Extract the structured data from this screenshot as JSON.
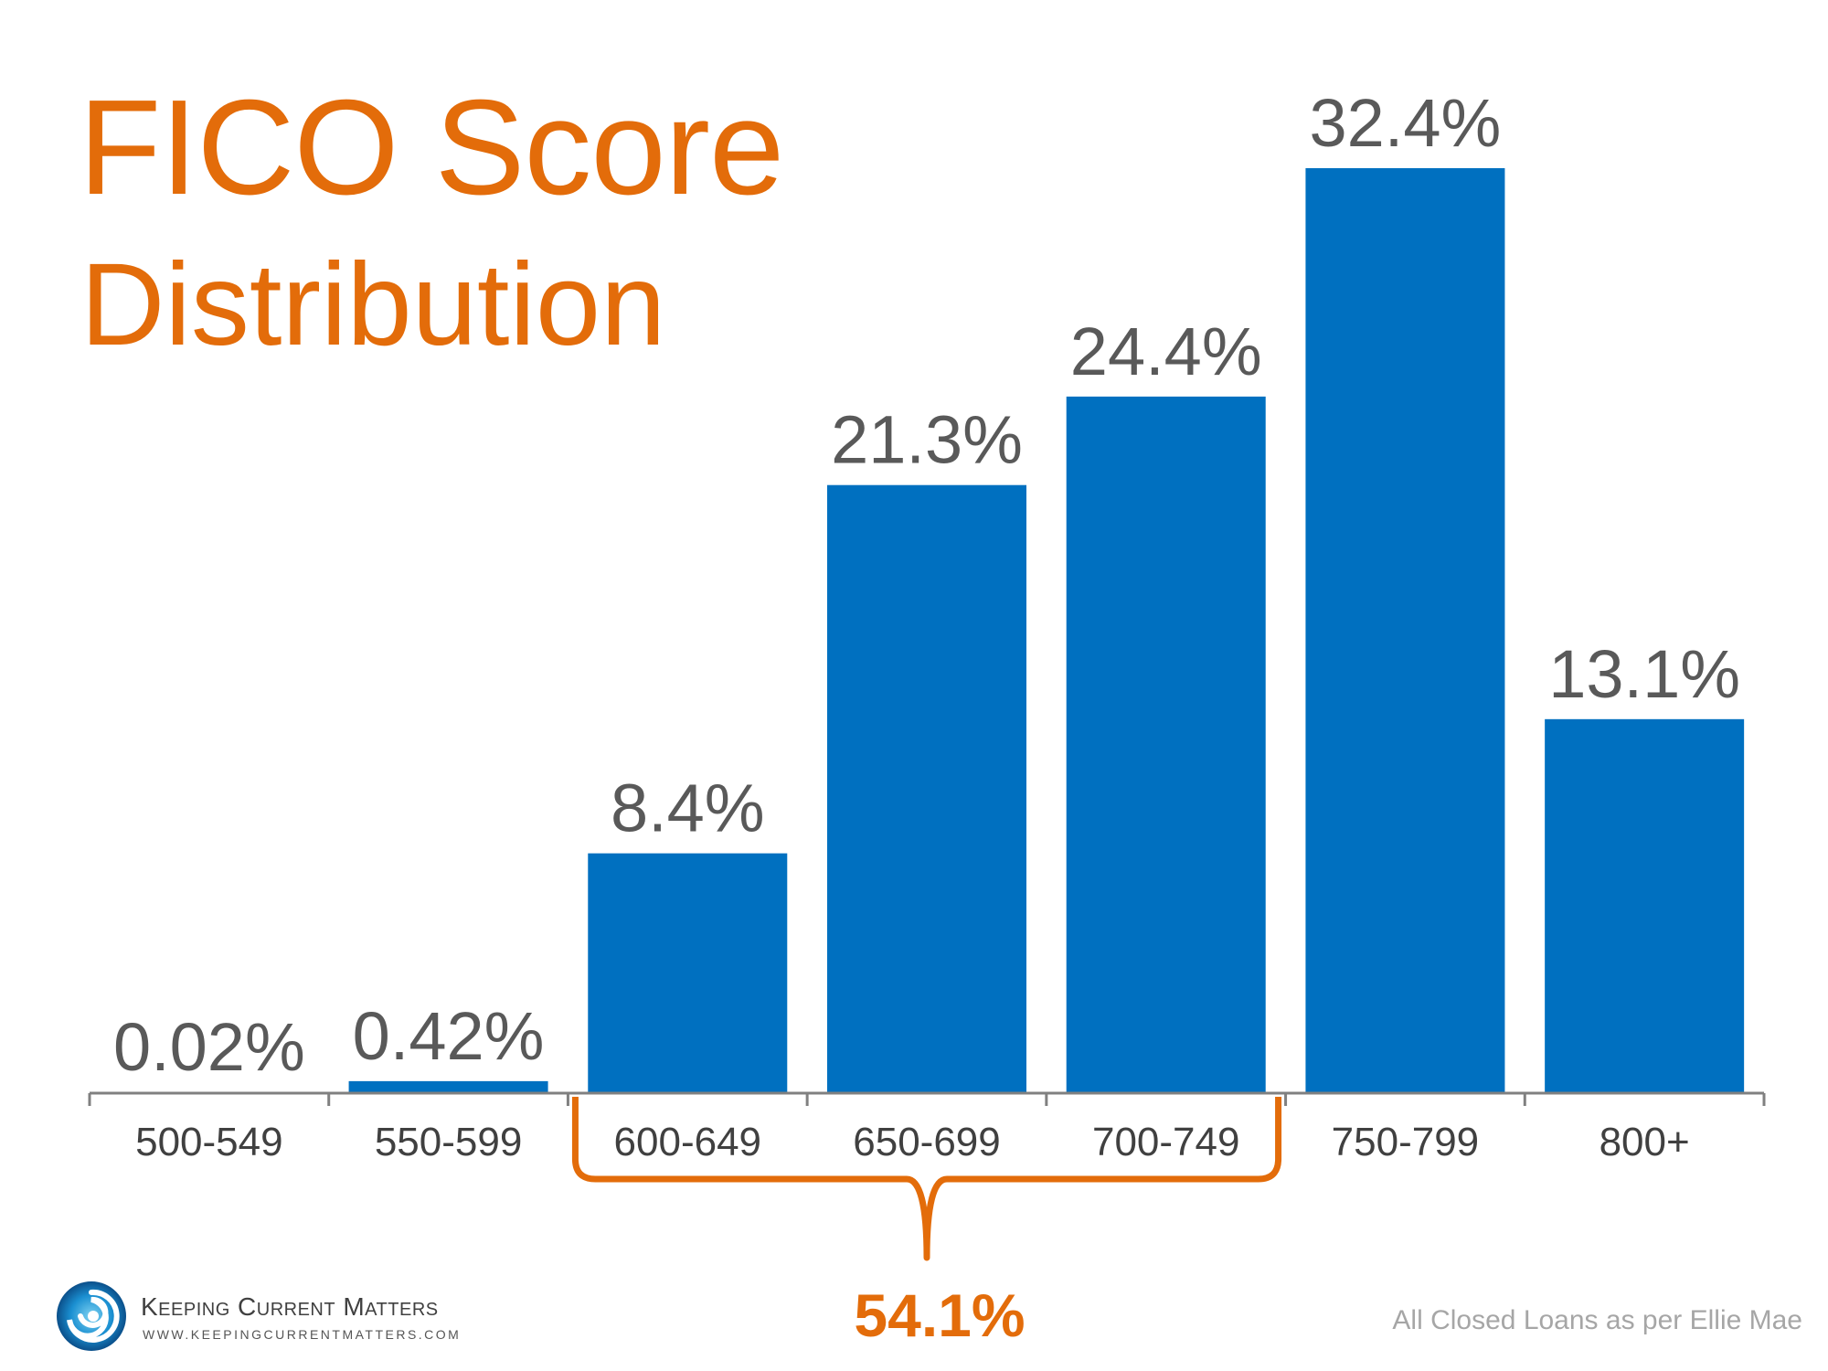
{
  "title": {
    "main": "FICO Score",
    "sub": "Distribution"
  },
  "chart_data": {
    "type": "bar",
    "title": "FICO Score Distribution",
    "xlabel": "",
    "ylabel": "",
    "categories": [
      "500-549",
      "550-599",
      "600-649",
      "650-699",
      "700-749",
      "750-799",
      "800+"
    ],
    "values": [
      0.02,
      0.42,
      8.4,
      21.3,
      24.4,
      32.4,
      13.1
    ],
    "data_labels": [
      "0.02%",
      "0.42%",
      "8.4%",
      "21.3%",
      "24.4%",
      "32.4%",
      "13.1%"
    ],
    "ylim": [
      0,
      32.4
    ],
    "grid": false,
    "legend": "none",
    "bracket": {
      "from_category": "600-649",
      "to_category": "700-749",
      "label": "54.1%"
    }
  },
  "colors": {
    "bar": "#0070C0",
    "accent": "#E36C0A",
    "value_label": "#595959",
    "axis": "#808080",
    "tick_label": "#404040"
  },
  "footer": {
    "logo_name": "Keeping Current Matters",
    "logo_url": "WWW.KEEPINGCURRENTMATTERS.COM",
    "logo_icon": "swirl-logo-icon",
    "source": "All Closed Loans as per Ellie Mae"
  }
}
